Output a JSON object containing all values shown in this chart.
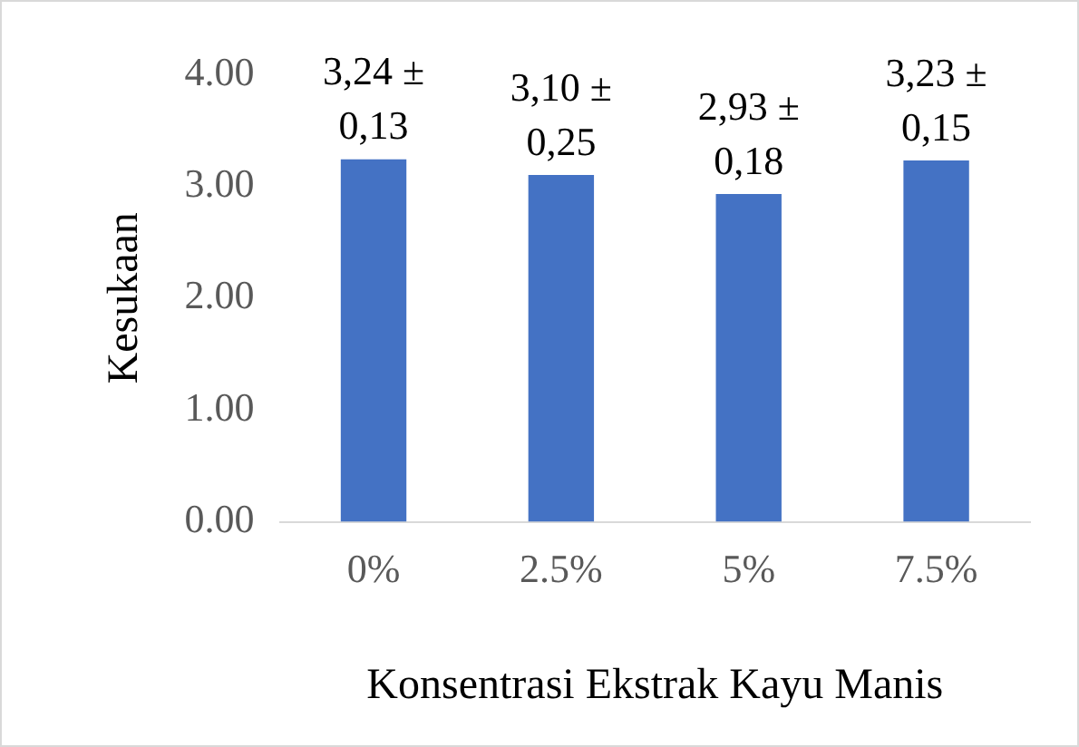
{
  "chart_data": {
    "type": "bar",
    "xlabel": "Konsentrasi Ekstrak Kayu Manis",
    "ylabel": "Kesukaan",
    "categories": [
      "0%",
      "2.5%",
      "5%",
      "7.5%"
    ],
    "values": [
      3.24,
      3.1,
      2.93,
      3.23
    ],
    "value_labels": [
      "3,24 ± 0,13",
      "3,10 ± 0,25",
      "2,93 ± 0,18",
      "3,23 ± 0,15"
    ],
    "color": "#4472c4",
    "ylim": [
      0,
      4
    ],
    "yticks": [
      {
        "value": 0,
        "label": "0.00"
      },
      {
        "value": 1,
        "label": "1.00"
      },
      {
        "value": 2,
        "label": "2.00"
      },
      {
        "value": 3,
        "label": "3.00"
      },
      {
        "value": 4,
        "label": "4.00"
      }
    ],
    "grid": false,
    "legend": false
  }
}
